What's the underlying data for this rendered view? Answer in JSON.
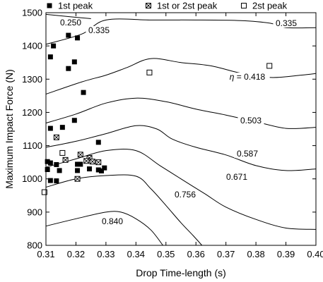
{
  "chart_data": {
    "type": "scatter",
    "xlabel": "Drop Time-length (s)",
    "ylabel": "Maximum Impact Force (N)",
    "xlim": [
      0.31,
      0.4
    ],
    "ylim": [
      800,
      1500
    ],
    "x_ticks": [
      0.31,
      0.32,
      0.33,
      0.34,
      0.35,
      0.36,
      0.37,
      0.38,
      0.39,
      0.4
    ],
    "x_tick_labels": [
      "0.31",
      "0.32",
      "0.33",
      "0.34",
      "0.35",
      "0.36",
      "0.37",
      "0.38",
      "0.39",
      "0.40"
    ],
    "y_ticks": [
      800,
      900,
      1000,
      1100,
      1200,
      1300,
      1400,
      1500
    ],
    "y_tick_labels": [
      "800",
      "900",
      "1000",
      "1100",
      "1200",
      "1300",
      "1400",
      "1500"
    ],
    "grid": false,
    "legend": {
      "placement": "top",
      "entries": [
        {
          "label": "1st peak",
          "marker": "filled-square"
        },
        {
          "label": "1st or 2st peak",
          "marker": "crossed-square"
        },
        {
          "label": "2st peak",
          "marker": "open-square"
        }
      ]
    },
    "series": [
      {
        "name": "1st peak",
        "marker": "filled-square",
        "points": [
          [
            0.3175,
            1432
          ],
          [
            0.3205,
            1424
          ],
          [
            0.3125,
            1400
          ],
          [
            0.3115,
            1367
          ],
          [
            0.3195,
            1352
          ],
          [
            0.3175,
            1332
          ],
          [
            0.3225,
            1260
          ],
          [
            0.3195,
            1176
          ],
          [
            0.3155,
            1155
          ],
          [
            0.3115,
            1152
          ],
          [
            0.3275,
            1110
          ],
          [
            0.3105,
            1052
          ],
          [
            0.3115,
            1048
          ],
          [
            0.3135,
            1043
          ],
          [
            0.3145,
            1025
          ],
          [
            0.3205,
            1044
          ],
          [
            0.3215,
            1044
          ],
          [
            0.3245,
            1030
          ],
          [
            0.3205,
            1025
          ],
          [
            0.3275,
            1027
          ],
          [
            0.3285,
            1024
          ],
          [
            0.3295,
            1033
          ],
          [
            0.3105,
            1028
          ],
          [
            0.3115,
            995
          ],
          [
            0.3135,
            994
          ]
        ]
      },
      {
        "name": "1st or 2st peak",
        "marker": "crossed-square",
        "points": [
          [
            0.3135,
            1125
          ],
          [
            0.3215,
            1073
          ],
          [
            0.3245,
            1063
          ],
          [
            0.3165,
            1057
          ],
          [
            0.3235,
            1054
          ],
          [
            0.3255,
            1052
          ],
          [
            0.3275,
            1050
          ],
          [
            0.3205,
            1000
          ]
        ]
      },
      {
        "name": "2st peak",
        "marker": "open-square",
        "points": [
          [
            0.3445,
            1320
          ],
          [
            0.3845,
            1340
          ],
          [
            0.3155,
            1078
          ],
          [
            0.3095,
            960
          ]
        ]
      }
    ],
    "contours": [
      {
        "label": "0.250",
        "points": [
          [
            0.31,
            1495
          ],
          [
            0.318,
            1488
          ],
          [
            0.325,
            1482
          ]
        ]
      },
      {
        "label": "0.335",
        "points": [
          [
            0.31,
            1405
          ],
          [
            0.322,
            1436
          ],
          [
            0.33,
            1478
          ],
          [
            0.345,
            1478
          ],
          [
            0.36,
            1478
          ],
          [
            0.375,
            1476
          ],
          [
            0.385,
            1468
          ],
          [
            0.39,
            1455
          ],
          [
            0.4,
            1455
          ]
        ]
      },
      {
        "label": "0.418",
        "points": [
          [
            0.31,
            1255
          ],
          [
            0.322,
            1292
          ],
          [
            0.33,
            1312
          ],
          [
            0.337,
            1335
          ],
          [
            0.345,
            1362
          ],
          [
            0.355,
            1350
          ],
          [
            0.365,
            1340
          ],
          [
            0.375,
            1318
          ],
          [
            0.385,
            1305
          ],
          [
            0.395,
            1312
          ],
          [
            0.4,
            1317
          ]
        ]
      },
      {
        "label": "0.503",
        "points": [
          [
            0.31,
            1168
          ],
          [
            0.32,
            1195
          ],
          [
            0.33,
            1228
          ],
          [
            0.34,
            1243
          ],
          [
            0.35,
            1232
          ],
          [
            0.36,
            1210
          ],
          [
            0.37,
            1192
          ],
          [
            0.38,
            1172
          ],
          [
            0.39,
            1152
          ],
          [
            0.4,
            1155
          ]
        ]
      },
      {
        "label": "0.587",
        "points": [
          [
            0.31,
            1095
          ],
          [
            0.32,
            1113
          ],
          [
            0.33,
            1136
          ],
          [
            0.34,
            1160
          ],
          [
            0.347,
            1150
          ],
          [
            0.352,
            1120
          ],
          [
            0.36,
            1095
          ],
          [
            0.37,
            1072
          ],
          [
            0.38,
            1040
          ],
          [
            0.39,
            1025
          ],
          [
            0.4,
            1030
          ]
        ]
      },
      {
        "label": "0.671",
        "points": [
          [
            0.31,
            1035
          ],
          [
            0.32,
            1060
          ],
          [
            0.33,
            1085
          ],
          [
            0.34,
            1085
          ],
          [
            0.348,
            1040
          ],
          [
            0.355,
            1000
          ],
          [
            0.363,
            955
          ],
          [
            0.37,
            915
          ],
          [
            0.38,
            878
          ],
          [
            0.39,
            852
          ],
          [
            0.4,
            848
          ]
        ]
      },
      {
        "label": "0.756",
        "points": [
          [
            0.31,
            975
          ],
          [
            0.32,
            1000
          ],
          [
            0.33,
            1010
          ],
          [
            0.34,
            1008
          ],
          [
            0.345,
            970
          ],
          [
            0.35,
            920
          ],
          [
            0.355,
            868
          ],
          [
            0.359,
            830
          ],
          [
            0.362,
            800
          ]
        ]
      },
      {
        "label": "0.840",
        "points": [
          [
            0.31,
            858
          ],
          [
            0.32,
            880
          ],
          [
            0.33,
            900
          ],
          [
            0.335,
            900
          ],
          [
            0.34,
            880
          ],
          [
            0.345,
            846
          ],
          [
            0.349,
            800
          ]
        ]
      }
    ],
    "contour_annotation_prefix": "η ="
  }
}
